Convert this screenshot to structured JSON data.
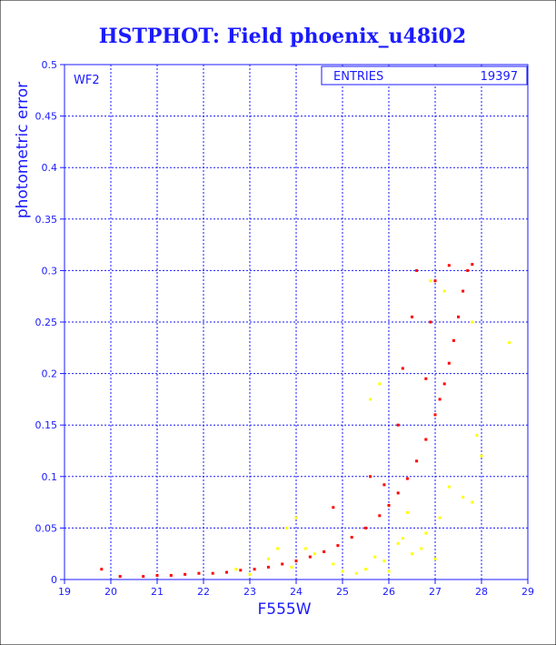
{
  "chart_data": {
    "type": "scatter",
    "title": "HSTPHOT: Field phoenix_u48i02",
    "xlabel": "F555W",
    "ylabel": "photometric error",
    "xlim": [
      19,
      29
    ],
    "ylim": [
      0,
      0.5
    ],
    "x_ticks": [
      "19",
      "20",
      "21",
      "22",
      "23",
      "24",
      "25",
      "26",
      "27",
      "28",
      "29"
    ],
    "y_ticks": [
      "0",
      "0.05",
      "0.1",
      "0.15",
      "0.2",
      "0.25",
      "0.3",
      "0.35",
      "0.4",
      "0.45",
      "0.5"
    ],
    "grid": true,
    "panel_label": "WF2",
    "stats_box": {
      "label": "ENTRIES",
      "value": "19397"
    },
    "series": [
      {
        "color": "#ff0000",
        "points": [
          [
            19.8,
            0.01
          ],
          [
            20.2,
            0.003
          ],
          [
            20.7,
            0.003
          ],
          [
            21.0,
            0.004
          ],
          [
            21.3,
            0.004
          ],
          [
            21.6,
            0.005
          ],
          [
            21.9,
            0.006
          ],
          [
            22.2,
            0.006
          ],
          [
            22.5,
            0.007
          ],
          [
            22.8,
            0.009
          ],
          [
            23.1,
            0.01
          ],
          [
            23.4,
            0.012
          ],
          [
            23.7,
            0.015
          ],
          [
            24.0,
            0.018
          ],
          [
            24.3,
            0.022
          ],
          [
            24.6,
            0.027
          ],
          [
            24.9,
            0.033
          ],
          [
            25.2,
            0.041
          ],
          [
            25.5,
            0.05
          ],
          [
            25.8,
            0.062
          ],
          [
            26.0,
            0.072
          ],
          [
            26.2,
            0.084
          ],
          [
            26.4,
            0.098
          ],
          [
            26.6,
            0.115
          ],
          [
            26.8,
            0.136
          ],
          [
            27.0,
            0.16
          ],
          [
            27.1,
            0.175
          ],
          [
            27.2,
            0.19
          ],
          [
            27.3,
            0.21
          ],
          [
            27.4,
            0.232
          ],
          [
            27.5,
            0.255
          ],
          [
            27.6,
            0.28
          ],
          [
            27.7,
            0.3
          ],
          [
            27.8,
            0.306
          ],
          [
            26.5,
            0.255
          ],
          [
            26.6,
            0.3
          ],
          [
            27.0,
            0.29
          ],
          [
            26.3,
            0.205
          ],
          [
            26.2,
            0.15
          ],
          [
            25.6,
            0.1
          ],
          [
            24.8,
            0.07
          ],
          [
            26.9,
            0.25
          ],
          [
            27.3,
            0.305
          ],
          [
            26.8,
            0.195
          ],
          [
            25.9,
            0.092
          ]
        ]
      },
      {
        "color": "#ffff00",
        "points": [
          [
            22.7,
            0.01
          ],
          [
            23.0,
            0.005
          ],
          [
            23.4,
            0.02
          ],
          [
            23.6,
            0.03
          ],
          [
            23.9,
            0.012
          ],
          [
            24.2,
            0.03
          ],
          [
            24.4,
            0.025
          ],
          [
            24.8,
            0.015
          ],
          [
            25.0,
            0.008
          ],
          [
            25.3,
            0.006
          ],
          [
            25.5,
            0.01
          ],
          [
            25.7,
            0.022
          ],
          [
            25.9,
            0.018
          ],
          [
            26.0,
            0.008
          ],
          [
            26.2,
            0.035
          ],
          [
            26.3,
            0.04
          ],
          [
            26.5,
            0.025
          ],
          [
            26.7,
            0.03
          ],
          [
            26.8,
            0.045
          ],
          [
            27.0,
            0.02
          ],
          [
            27.1,
            0.06
          ],
          [
            27.3,
            0.09
          ],
          [
            27.6,
            0.08
          ],
          [
            27.8,
            0.075
          ],
          [
            28.0,
            0.12
          ],
          [
            28.6,
            0.23
          ],
          [
            27.2,
            0.28
          ],
          [
            25.6,
            0.175
          ],
          [
            25.8,
            0.19
          ],
          [
            23.8,
            0.05
          ],
          [
            24.0,
            0.06
          ],
          [
            26.9,
            0.29
          ],
          [
            27.8,
            0.25
          ],
          [
            27.9,
            0.14
          ],
          [
            26.4,
            0.065
          ]
        ]
      }
    ]
  }
}
